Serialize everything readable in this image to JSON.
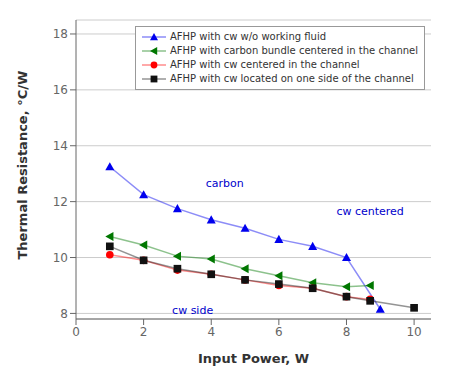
{
  "chart_data": {
    "type": "line",
    "x_label": "Input Power, W",
    "y_label": "Thermal Resistance, °C/W",
    "xlim": [
      0,
      10.5
    ],
    "ylim": [
      7.8,
      18.5
    ],
    "xticks": [
      0,
      2,
      4,
      6,
      8,
      10
    ],
    "yticks": [
      8,
      10,
      12,
      14,
      16,
      18
    ],
    "grid": "y",
    "legend": "upper right",
    "series": [
      {
        "name": "AFHP with cw w/o working fluid",
        "color": "#0000ee",
        "marker": "triangle-up",
        "x": [
          1,
          2,
          3,
          4,
          5,
          6,
          7,
          8,
          9
        ],
        "values": [
          13.25,
          12.25,
          11.75,
          11.35,
          11.05,
          10.65,
          10.4,
          10.0,
          8.15
        ]
      },
      {
        "name": "AFHP with carbon bundle centered in the channel",
        "color": "#007700",
        "marker": "triangle-left",
        "x": [
          1,
          2,
          3,
          4,
          5,
          6,
          7,
          8,
          8.7
        ],
        "values": [
          10.75,
          10.45,
          10.05,
          9.95,
          9.6,
          9.35,
          9.1,
          8.95,
          9.0
        ]
      },
      {
        "name": "AFHP with cw centered in the channel",
        "color": "#ff0000",
        "marker": "circle",
        "x": [
          1,
          2,
          3,
          4,
          5,
          6,
          7,
          8,
          8.7
        ],
        "values": [
          10.1,
          9.9,
          9.55,
          9.4,
          9.2,
          9.0,
          8.9,
          8.6,
          8.5
        ]
      },
      {
        "name": "AFHP with cw located on one side of the channel",
        "color": "#111111",
        "marker": "square",
        "x": [
          1,
          2,
          3,
          4,
          5,
          6,
          7,
          8,
          8.7,
          10
        ],
        "values": [
          10.4,
          9.9,
          9.6,
          9.4,
          9.2,
          9.05,
          8.9,
          8.6,
          8.45,
          8.2
        ]
      }
    ],
    "annotations": [
      {
        "text": "carbon",
        "x": 4.4,
        "y": 12.65,
        "color": "#0000cc"
      },
      {
        "text": "cw centered",
        "x": 8.7,
        "y": 11.65,
        "color": "#0000cc"
      },
      {
        "text": "cw side",
        "x": 3.45,
        "y": 8.13,
        "color": "#0000cc"
      }
    ]
  }
}
